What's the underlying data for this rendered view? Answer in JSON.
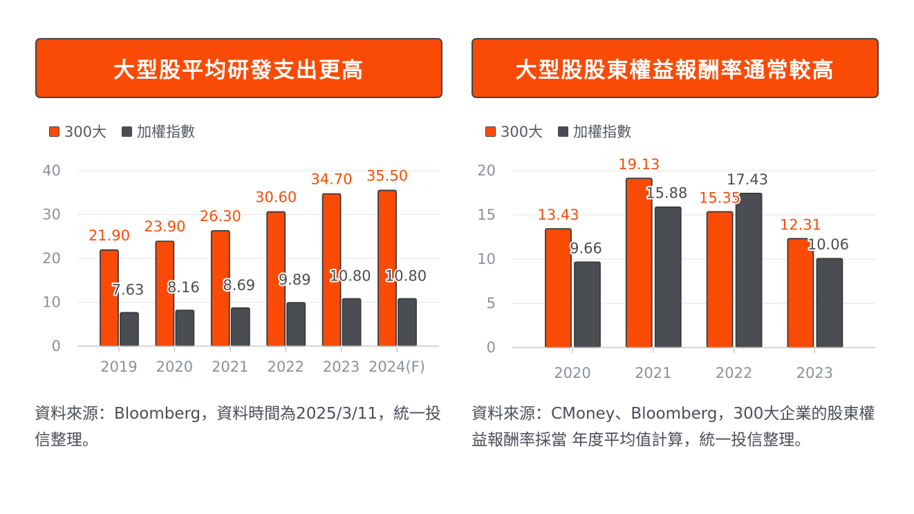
{
  "colors": {
    "series_300": "#f94b06",
    "series_index": "#4a4d52",
    "bar_outline": "#3a3a3a",
    "grid": "#e8e8e8",
    "axis": "#c8c8c8",
    "tick_label": "#8a909a"
  },
  "left": {
    "title": "大型股平均研發支出更高",
    "legend": [
      "300大",
      "加權指數"
    ],
    "note": "資料來源：Bloomberg，資料時間為2025/3/11，統一投信整理。"
  },
  "right": {
    "title": "大型股股東權益報酬率通常較高",
    "legend": [
      "300大",
      "加權指數"
    ],
    "note": "資料來源：CMoney、Bloomberg，300大企業的股東權益報酬率採當 年度平均值計算，統一投信整理。"
  },
  "chart_data": [
    {
      "type": "bar",
      "title": "大型股平均研發支出更高",
      "xlabel": "",
      "ylabel": "",
      "categories": [
        "2019",
        "2020",
        "2021",
        "2022",
        "2023",
        "2024(F)"
      ],
      "series": [
        {
          "name": "300大",
          "values": [
            21.9,
            23.9,
            26.3,
            30.6,
            34.7,
            35.5
          ],
          "labels": [
            "21.90",
            "23.90",
            "26.30",
            "30.60",
            "34.70",
            "35.50"
          ]
        },
        {
          "name": "加權指數",
          "values": [
            7.63,
            8.16,
            8.69,
            9.89,
            10.8,
            10.8
          ],
          "labels": [
            "7.63",
            "8.16",
            "8.69",
            "9.89",
            "10.80",
            "10.80"
          ]
        }
      ],
      "ylim": [
        0,
        40
      ],
      "yticks": [
        "0",
        "10",
        "20",
        "30",
        "40"
      ],
      "grid": true,
      "legend": "top-left"
    },
    {
      "type": "bar",
      "title": "大型股股東權益報酬率通常較高",
      "xlabel": "",
      "ylabel": "",
      "categories": [
        "2020",
        "2021",
        "2022",
        "2023"
      ],
      "series": [
        {
          "name": "300大",
          "values": [
            13.43,
            19.13,
            15.35,
            12.31
          ],
          "labels": [
            "13.43",
            "19.13",
            "15.35",
            "12.31"
          ]
        },
        {
          "name": "加權指數",
          "values": [
            9.66,
            15.88,
            17.43,
            10.06
          ],
          "labels": [
            "9.66",
            "15.88",
            "17.43",
            "10.06"
          ]
        }
      ],
      "ylim": [
        0,
        20
      ],
      "yticks": [
        "0",
        "5",
        "10",
        "15",
        "20"
      ],
      "grid": true,
      "legend": "top-left"
    }
  ]
}
